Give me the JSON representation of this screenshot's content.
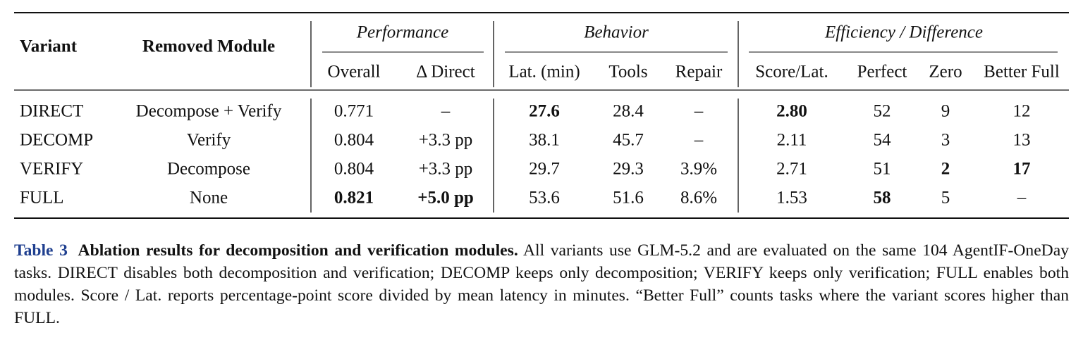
{
  "table": {
    "header": {
      "variant": "Variant",
      "removed_module": "Removed Module",
      "groups": [
        {
          "title": "Performance",
          "columns": [
            "Overall",
            "Δ Direct"
          ]
        },
        {
          "title": "Behavior",
          "columns": [
            "Lat. (min)",
            "Tools",
            "Repair"
          ]
        },
        {
          "title": "Efficiency / Difference",
          "columns": [
            "Score/Lat.",
            "Perfect",
            "Zero",
            "Better Full"
          ]
        }
      ]
    },
    "rows": [
      [
        "DIRECT",
        "Decompose + Verify",
        "0.771",
        "–",
        {
          "text": "27.6",
          "bold": true
        },
        "28.4",
        "–",
        {
          "text": "2.80",
          "bold": true
        },
        "52",
        "9",
        "12"
      ],
      [
        "DECOMP",
        "Verify",
        "0.804",
        "+3.3 pp",
        "38.1",
        "45.7",
        "–",
        "2.11",
        "54",
        "3",
        "13"
      ],
      [
        "VERIFY",
        "Decompose",
        "0.804",
        "+3.3 pp",
        "29.7",
        "29.3",
        "3.9%",
        "2.71",
        "51",
        {
          "text": "2",
          "bold": true
        },
        {
          "text": "17",
          "bold": true
        }
      ],
      [
        "FULL",
        "None",
        {
          "text": "0.821",
          "bold": true
        },
        {
          "text": "+5.0 pp",
          "bold": true
        },
        "53.6",
        "51.6",
        "8.6%",
        "1.53",
        {
          "text": "58",
          "bold": true
        },
        "5",
        "–"
      ]
    ]
  },
  "caption": {
    "label": "Table 3",
    "title": "Ablation results for decomposition and verification modules.",
    "text": "All variants use GLM-5.2 and are evaluated on the same 104 AgentIF-OneDay tasks. DIRECT disables both decomposition and verification; DECOMP keeps only decomposition; VERIFY keeps only verification; FULL enables both modules. Score / Lat. reports percentage-point score divided by mean latency in minutes. “Better Full” counts tasks where the variant scores higher than FULL."
  }
}
